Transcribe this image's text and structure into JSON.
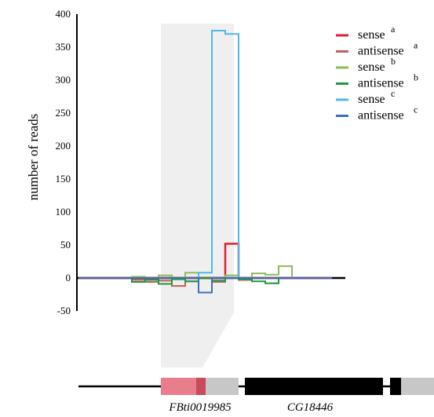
{
  "chart_data": {
    "type": "line",
    "ylabel": "number of reads",
    "ylim": [
      -50,
      400
    ],
    "yticks": [
      400,
      350,
      300,
      250,
      200,
      150,
      100,
      50,
      0,
      -50
    ],
    "grid": false,
    "legend_position": "top-right",
    "x": [
      1,
      2,
      3,
      4,
      5,
      6,
      7,
      8,
      9,
      10,
      11,
      12,
      13,
      14,
      15,
      16,
      17,
      18,
      19,
      20
    ],
    "series": [
      {
        "name": "sense",
        "sup": "a",
        "color": "#e0202a",
        "values": [
          0,
          0,
          0,
          0,
          0,
          0,
          0,
          0,
          0,
          0,
          0,
          52,
          0,
          0,
          0,
          0,
          0,
          0,
          0,
          0
        ]
      },
      {
        "name": "antisense",
        "sup": "a",
        "color": "#c0605a",
        "values": [
          0,
          0,
          0,
          0,
          -3,
          -6,
          -4,
          -12,
          -5,
          0,
          -6,
          0,
          -3,
          0,
          0,
          0,
          0,
          0,
          0,
          0
        ]
      },
      {
        "name": "sense",
        "sup": "b",
        "color": "#8fba5a",
        "values": [
          0,
          0,
          0,
          0,
          2,
          0,
          4,
          0,
          8,
          0,
          0,
          4,
          0,
          7,
          5,
          18,
          0,
          0,
          0,
          0
        ]
      },
      {
        "name": "antisense",
        "sup": "b",
        "color": "#1a9a3a",
        "values": [
          0,
          0,
          0,
          0,
          -6,
          -3,
          -9,
          -2,
          -5,
          0,
          -4,
          0,
          -2,
          -5,
          -8,
          0,
          0,
          0,
          0,
          0
        ]
      },
      {
        "name": "sense",
        "sup": "c",
        "color": "#4fb8e6",
        "values": [
          0,
          0,
          0,
          0,
          0,
          0,
          0,
          0,
          0,
          8,
          375,
          370,
          0,
          0,
          0,
          0,
          0,
          0,
          0,
          0
        ]
      },
      {
        "name": "antisense",
        "sup": "c",
        "color": "#3a6ec0",
        "values": [
          0,
          0,
          0,
          0,
          0,
          0,
          0,
          0,
          0,
          -22,
          0,
          0,
          0,
          0,
          0,
          0,
          0,
          0,
          0,
          0
        ]
      }
    ]
  },
  "gene_model": {
    "te_label": "FBti0019985",
    "gene_label": "CG18446",
    "colors": {
      "te": "#e87d8c",
      "te_overlap": "#c94a5c",
      "utr": "#c7c7c7",
      "exon": "#000000",
      "shade": "#efefef"
    }
  }
}
